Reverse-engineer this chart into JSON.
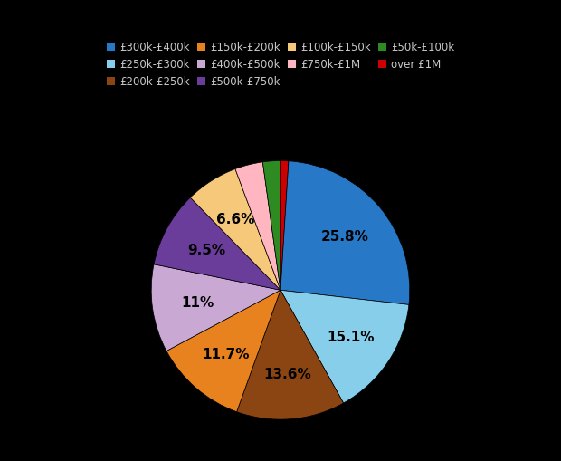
{
  "labels": [
    "£300k-£400k",
    "£250k-£300k",
    "£200k-£250k",
    "£150k-£200k",
    "£400k-£500k",
    "£500k-£750k",
    "£100k-£150k",
    "£750k-£1M",
    "£50k-£100k",
    "over £1M"
  ],
  "values": [
    25.8,
    15.1,
    13.6,
    11.7,
    11.0,
    9.5,
    6.6,
    3.5,
    2.2,
    1.0
  ],
  "colors": [
    "#2878c8",
    "#87ceeb",
    "#8b4513",
    "#e8821e",
    "#c9a8d4",
    "#6a3d9a",
    "#f5c87a",
    "#ffb6c1",
    "#2e8b22",
    "#cc0000"
  ],
  "pct_labels": [
    "25.8%",
    "15.1%",
    "13.6%",
    "11.7%",
    "11%",
    "9.5%",
    "6.6%",
    "",
    "",
    ""
  ],
  "background_color": "#000000",
  "legend_text_color": "#c8c8c8",
  "startangle": 90,
  "legend_order": [
    0,
    1,
    2,
    3,
    4,
    5,
    6,
    7,
    8,
    9
  ]
}
